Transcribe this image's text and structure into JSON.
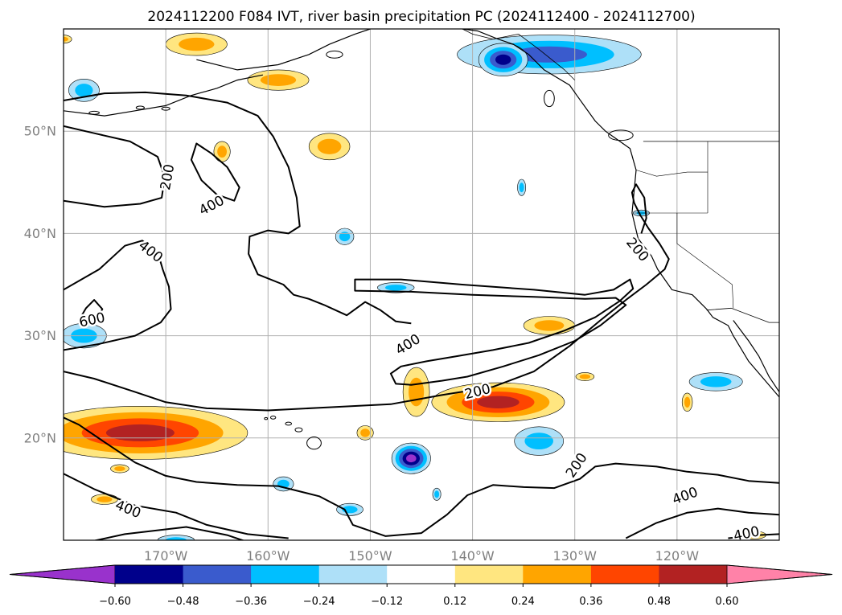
{
  "chart_data": {
    "type": "contour-map",
    "title": "2024112200 F084 IVT, river basin precipitation PC (2024112400 - 2024112700)",
    "map": {
      "lon_range": [
        -180,
        -110
      ],
      "lat_range": [
        10,
        60
      ],
      "grid": true,
      "x_ticks": [
        {
          "value": -170,
          "label": "170°W"
        },
        {
          "value": -160,
          "label": "160°W"
        },
        {
          "value": -150,
          "label": "150°W"
        },
        {
          "value": -140,
          "label": "140°W"
        },
        {
          "value": -130,
          "label": "130°W"
        },
        {
          "value": -120,
          "label": "120°W"
        }
      ],
      "y_ticks": [
        {
          "value": 20,
          "label": "20°N"
        },
        {
          "value": 30,
          "label": "30°N"
        },
        {
          "value": 40,
          "label": "40°N"
        },
        {
          "value": 50,
          "label": "50°N"
        }
      ]
    },
    "colorbar": {
      "extend": "both",
      "bounds": [
        -0.6,
        -0.48,
        -0.36,
        -0.24,
        -0.12,
        0.12,
        0.24,
        0.36,
        0.48,
        0.6
      ],
      "tick_labels": [
        "−0.60",
        "−0.48",
        "−0.36",
        "−0.24",
        "−0.12",
        "0.12",
        "0.24",
        "0.36",
        "0.48",
        "0.60"
      ],
      "colors": [
        "#9932cc",
        "#00008b",
        "#3a5bcd",
        "#00bfff",
        "#aee0f8",
        "#ffffff",
        "#ffe680",
        "#ffa500",
        "#ff4500",
        "#b22222",
        "#ff82a8"
      ]
    },
    "ivt_contours": [
      {
        "value": 200,
        "label": "200",
        "lon": -169.8,
        "lat": 45.5,
        "angle": -80
      },
      {
        "value": 400,
        "label": "400",
        "lon": -165.5,
        "lat": 42.7,
        "angle": -28
      },
      {
        "value": 400,
        "label": "400",
        "lon": -171.5,
        "lat": 38.2,
        "angle": 38
      },
      {
        "value": 600,
        "label": "600",
        "lon": -177.2,
        "lat": 31.5,
        "angle": -12
      },
      {
        "value": 200,
        "label": "200",
        "lon": -123.9,
        "lat": 38.4,
        "angle": 50
      },
      {
        "value": 400,
        "label": "400",
        "lon": -146.3,
        "lat": 29.1,
        "angle": -32
      },
      {
        "value": 200,
        "label": "200",
        "lon": -139.5,
        "lat": 24.5,
        "angle": -14
      },
      {
        "value": 200,
        "label": "200",
        "lon": -129.8,
        "lat": 17.3,
        "angle": -56
      },
      {
        "value": 400,
        "label": "400",
        "lon": -173.7,
        "lat": 13.0,
        "angle": 22
      },
      {
        "value": 400,
        "label": "400",
        "lon": -119.2,
        "lat": 14.3,
        "angle": -20
      },
      {
        "value": 400,
        "label": "400",
        "lon": -113.2,
        "lat": 10.6,
        "angle": -12
      }
    ],
    "precip_pc_blobs": [
      {
        "lon": -172.5,
        "lat": 20.5,
        "rx": 10.5,
        "ry": 2.6,
        "levels": [
          0.12,
          0.24,
          0.36,
          0.48
        ]
      },
      {
        "lon": -137.5,
        "lat": 23.5,
        "rx": 6.5,
        "ry": 1.9,
        "levels": [
          0.12,
          0.24,
          0.36,
          0.48
        ]
      },
      {
        "lon": -145.5,
        "lat": 24.5,
        "rx": 1.3,
        "ry": 2.4,
        "levels": [
          0.12,
          0.24
        ]
      },
      {
        "lon": -132.5,
        "lat": 31.0,
        "rx": 2.5,
        "ry": 0.9,
        "levels": [
          0.12,
          0.24
        ]
      },
      {
        "lon": -159.0,
        "lat": 55.0,
        "rx": 3.0,
        "ry": 1.0,
        "levels": [
          0.12,
          0.24
        ]
      },
      {
        "lon": -167.0,
        "lat": 58.5,
        "rx": 3.0,
        "ry": 1.1,
        "levels": [
          0.12,
          0.24
        ]
      },
      {
        "lon": -154.0,
        "lat": 48.5,
        "rx": 2.0,
        "ry": 1.3,
        "levels": [
          0.12,
          0.24
        ]
      },
      {
        "lon": -164.5,
        "lat": 48.0,
        "rx": 0.8,
        "ry": 1.0,
        "levels": [
          0.12,
          0.24
        ]
      },
      {
        "lon": -150.5,
        "lat": 20.5,
        "rx": 0.8,
        "ry": 0.7,
        "levels": [
          0.12,
          0.24
        ]
      },
      {
        "lon": -119.0,
        "lat": 23.5,
        "rx": 0.5,
        "ry": 0.9,
        "levels": [
          0.12,
          0.24
        ]
      },
      {
        "lon": -174.5,
        "lat": 17.0,
        "rx": 0.9,
        "ry": 0.4,
        "levels": [
          0.12,
          0.24
        ]
      },
      {
        "lon": -176.0,
        "lat": 14.0,
        "rx": 1.3,
        "ry": 0.5,
        "levels": [
          0.12,
          0.24
        ]
      },
      {
        "lon": -129.0,
        "lat": 26.0,
        "rx": 0.9,
        "ry": 0.4,
        "levels": [
          0.12,
          0.24
        ]
      },
      {
        "lon": -180.0,
        "lat": 59.0,
        "rx": 0.8,
        "ry": 0.4,
        "levels": [
          0.12,
          0.24
        ]
      },
      {
        "lon": -112.5,
        "lat": 10.5,
        "rx": 1.2,
        "ry": 0.4,
        "levels": [
          0.12,
          0.24
        ]
      },
      {
        "lon": -132.5,
        "lat": 57.5,
        "rx": 9.0,
        "ry": 1.9,
        "levels": [
          -0.12,
          -0.24,
          -0.36
        ]
      },
      {
        "lon": -137.0,
        "lat": 57.0,
        "rx": 2.4,
        "ry": 1.6,
        "levels": [
          -0.12,
          -0.24,
          -0.36,
          -0.48
        ]
      },
      {
        "lon": -146.0,
        "lat": 18.0,
        "rx": 1.9,
        "ry": 1.5,
        "levels": [
          -0.12,
          -0.24,
          -0.36,
          -0.48,
          -0.6
        ]
      },
      {
        "lon": -133.5,
        "lat": 19.7,
        "rx": 2.4,
        "ry": 1.4,
        "levels": [
          -0.12,
          -0.24
        ]
      },
      {
        "lon": -116.2,
        "lat": 25.5,
        "rx": 2.6,
        "ry": 0.9,
        "levels": [
          -0.12,
          -0.24
        ]
      },
      {
        "lon": -178.0,
        "lat": 54.0,
        "rx": 1.5,
        "ry": 1.1,
        "levels": [
          -0.12,
          -0.24
        ]
      },
      {
        "lon": -178.0,
        "lat": 30.0,
        "rx": 2.2,
        "ry": 1.2,
        "levels": [
          -0.12,
          -0.24
        ]
      },
      {
        "lon": -147.5,
        "lat": 34.7,
        "rx": 1.8,
        "ry": 0.5,
        "levels": [
          -0.12,
          -0.24
        ]
      },
      {
        "lon": -152.5,
        "lat": 39.7,
        "rx": 0.9,
        "ry": 0.8,
        "levels": [
          -0.12,
          -0.24
        ]
      },
      {
        "lon": -135.2,
        "lat": 44.5,
        "rx": 0.4,
        "ry": 0.8,
        "levels": [
          -0.12,
          -0.24
        ]
      },
      {
        "lon": -143.5,
        "lat": 14.5,
        "rx": 0.4,
        "ry": 0.6,
        "levels": [
          -0.12,
          -0.24
        ]
      },
      {
        "lon": -158.5,
        "lat": 15.5,
        "rx": 1.0,
        "ry": 0.7,
        "levels": [
          -0.12,
          -0.24
        ]
      },
      {
        "lon": -152.0,
        "lat": 13.0,
        "rx": 1.3,
        "ry": 0.6,
        "levels": [
          -0.12,
          -0.24
        ]
      },
      {
        "lon": -169.0,
        "lat": 10.0,
        "rx": 1.8,
        "ry": 0.5,
        "levels": [
          -0.12,
          -0.24
        ]
      },
      {
        "lon": -123.5,
        "lat": 42.0,
        "rx": 0.8,
        "ry": 0.3,
        "levels": [
          -0.12,
          -0.24
        ]
      }
    ]
  }
}
